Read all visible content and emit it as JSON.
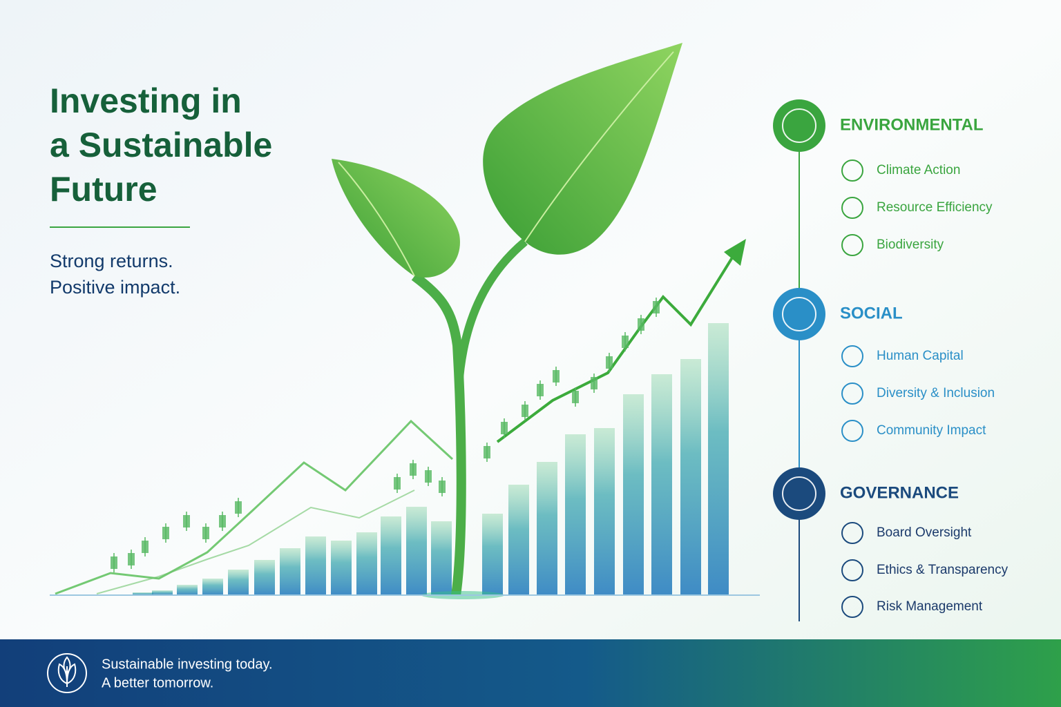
{
  "header": {
    "title": [
      "Investing in",
      "a Sustainable",
      "Future"
    ],
    "tagline": [
      "Strong returns.",
      "Positive impact."
    ]
  },
  "pillars": [
    {
      "title": "ENVIRONMENTAL",
      "items": [
        "Climate Action",
        "Resource Efficiency",
        "Biodiversity"
      ]
    },
    {
      "title": "SOCIAL",
      "items": [
        "Human Capital",
        "Diversity & Inclusion",
        "Community Impact"
      ]
    },
    {
      "title": "GOVERNANCE",
      "items": [
        "Board Oversight",
        "Ethics & Transparency",
        "Risk Management"
      ]
    }
  ],
  "footer": {
    "lines": [
      "Sustainable investing today.",
      "A better tomorrow."
    ]
  }
}
